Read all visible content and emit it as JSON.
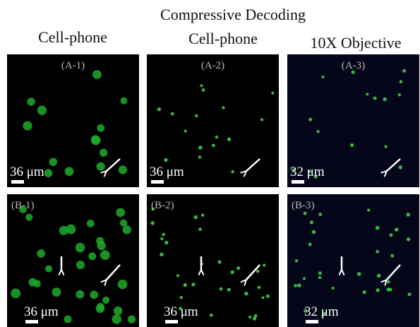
{
  "title": "Compressive Decoding",
  "columns": [
    "Cell-phone",
    "Cell-phone",
    "10X Objective"
  ],
  "panels": [
    {
      "label": "(A-1)",
      "scale": "36 μm"
    },
    {
      "label": "(A-2)",
      "scale": "36 μm"
    },
    {
      "label": "(A-3)",
      "scale": "32 μm"
    },
    {
      "label": "(B-1)",
      "scale": "36 μm"
    },
    {
      "label": "(B-2)",
      "scale": "36 μm"
    },
    {
      "label": "(B-3)",
      "scale": "32 μm"
    }
  ]
}
